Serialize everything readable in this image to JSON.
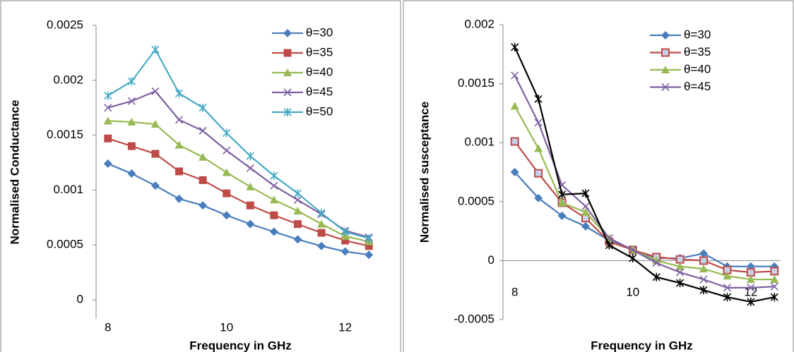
{
  "chart_data": [
    {
      "type": "line",
      "y_label": "Normalised Conductance",
      "x_label": "Frequency in GHz",
      "x": [
        8,
        8.4,
        8.8,
        9.2,
        9.6,
        10,
        10.4,
        10.8,
        11.2,
        11.6,
        12,
        12.4
      ],
      "xlim": [
        7.8,
        12.6
      ],
      "xticks": [
        8,
        10,
        12
      ],
      "ylim": [
        0,
        0.0025
      ],
      "yticks": [
        0,
        0.0005,
        0.001,
        0.0015,
        0.002,
        0.0025
      ],
      "series": [
        {
          "name": "θ=30",
          "color": "#4a7ebb",
          "marker": "diamond",
          "values": [
            0.00124,
            0.00115,
            0.00104,
            0.00092,
            0.00086,
            0.00077,
            0.00069,
            0.00062,
            0.00055,
            0.00049,
            0.00044,
            0.00041
          ]
        },
        {
          "name": "θ=35",
          "color": "#be4b48",
          "marker": "square",
          "values": [
            0.00147,
            0.0014,
            0.00133,
            0.00117,
            0.00109,
            0.00097,
            0.00086,
            0.00077,
            0.00069,
            0.00061,
            0.00054,
            0.00049
          ]
        },
        {
          "name": "θ=40",
          "color": "#98b954",
          "marker": "triangle",
          "values": [
            0.00163,
            0.00162,
            0.0016,
            0.00141,
            0.0013,
            0.00116,
            0.00103,
            0.00091,
            0.00081,
            0.00069,
            0.00058,
            0.00053
          ]
        },
        {
          "name": "θ=45",
          "color": "#7d60a0",
          "marker": "x",
          "values": [
            0.00175,
            0.00181,
            0.0019,
            0.00164,
            0.00154,
            0.00136,
            0.0012,
            0.00104,
            0.00091,
            0.00078,
            0.00063,
            0.00057
          ]
        },
        {
          "name": "θ=50",
          "color": "#46aac5",
          "marker": "star",
          "values": [
            0.00186,
            0.00199,
            0.00228,
            0.00188,
            0.00175,
            0.00152,
            0.00131,
            0.00113,
            0.00097,
            0.00079,
            0.00062,
            0.00056
          ]
        }
      ]
    },
    {
      "type": "line",
      "y_label": "Normalised susceptance",
      "x_label": "Frequency in GHz",
      "x": [
        8,
        8.4,
        8.8,
        9.2,
        9.6,
        10,
        10.4,
        10.8,
        11.2,
        11.6,
        12,
        12.4
      ],
      "xlim": [
        7.8,
        12.6
      ],
      "xticks": [
        8,
        10,
        12
      ],
      "ylim": [
        -0.0005,
        0.002
      ],
      "yticks": [
        -0.0005,
        0,
        0.0005,
        0.001,
        0.0015,
        0.002
      ],
      "series": [
        {
          "name": "θ=30",
          "color": "#4a7ebb",
          "marker": "diamond",
          "values": [
            0.00075,
            0.00053,
            0.00038,
            0.00029,
            0.00017,
            9e-05,
            2e-05,
            2e-05,
            6e-05,
            -5e-05,
            -5e-05,
            -5e-05
          ]
        },
        {
          "name": "θ=35",
          "color": "#be4b48",
          "marker": "hollow-square",
          "values": [
            0.00101,
            0.00074,
            0.00049,
            0.00036,
            0.00016,
            9e-05,
            3e-05,
            1e-05,
            0,
            -8e-05,
            -0.0001,
            -9e-05
          ]
        },
        {
          "name": "θ=40",
          "color": "#98b954",
          "marker": "triangle",
          "values": [
            0.00131,
            0.00095,
            0.00049,
            0.00041,
            0.00019,
            9e-05,
            0,
            -5e-05,
            -7e-05,
            -0.00013,
            -0.00016,
            -0.00016
          ]
        },
        {
          "name": "θ=45",
          "color": "#7d60a0",
          "marker": "x",
          "values": [
            0.00157,
            0.00117,
            0.00064,
            0.00046,
            0.00019,
            9e-05,
            -2e-05,
            -0.0001,
            -0.00016,
            -0.00023,
            -0.00023,
            -0.00022
          ]
        },
        {
          "color": "#000000",
          "marker": "star",
          "values": [
            0.00181,
            0.00137,
            0.00056,
            0.00057,
            0.00013,
            2e-05,
            -0.00014,
            -0.00019,
            -0.00025,
            -0.00031,
            -0.00035,
            -0.00031
          ]
        }
      ]
    }
  ]
}
